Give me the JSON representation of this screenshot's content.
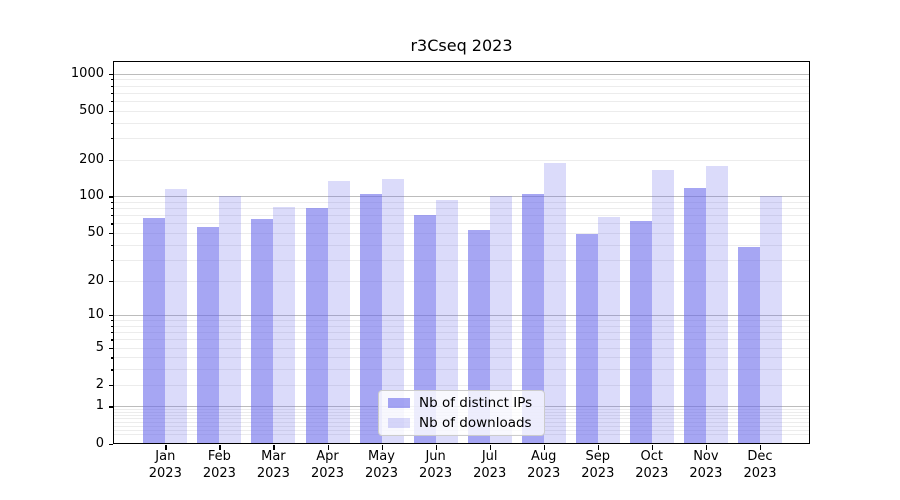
{
  "chart_data": {
    "type": "bar",
    "title": "r3Cseq 2023",
    "categories": [
      "Jan 2023",
      "Feb 2023",
      "Mar 2023",
      "Apr 2023",
      "May 2023",
      "Jun 2023",
      "Jul 2023",
      "Aug 2023",
      "Sep 2023",
      "Oct 2023",
      "Nov 2023",
      "Dec 2023"
    ],
    "series": [
      {
        "name": "Nb of distinct IPs",
        "values": [
          67,
          56,
          65,
          80,
          104,
          71,
          53,
          104,
          49,
          63,
          117,
          38
        ]
      },
      {
        "name": "Nb of downloads",
        "values": [
          114,
          101,
          82,
          133,
          140,
          93,
          101,
          189,
          68,
          164,
          178,
          100
        ]
      }
    ],
    "xlabel": "",
    "ylabel": "",
    "y_scale": "log10(value+1)",
    "y_ticks": [
      0,
      1,
      2,
      5,
      10,
      20,
      50,
      100,
      200,
      500,
      1000
    ],
    "y_tick_labels": [
      "0",
      "1",
      "2",
      "5",
      "10",
      "20",
      "50",
      "100",
      "200",
      "500",
      "1000"
    ],
    "ylim": [
      0,
      1265
    ],
    "grid": "horizontal major (powers of 10) and minor log gridlines",
    "legend_position": "lower center"
  },
  "legend": {
    "items": [
      {
        "label": "Nb of distinct IPs",
        "series": "ips"
      },
      {
        "label": "Nb of downloads",
        "series": "downloads"
      }
    ]
  },
  "colors": {
    "ips_bar": "rgba(104,104,235,0.59)",
    "downloads_bar": "rgba(104,104,235,0.24)",
    "ips_bar_hex": "#a8a8f3",
    "downloads_bar_hex": "#dcdcf9",
    "grid_major": "#bcbcbc",
    "grid_minor": "#ececec",
    "axis": "#000000",
    "background": "#ffffff"
  }
}
